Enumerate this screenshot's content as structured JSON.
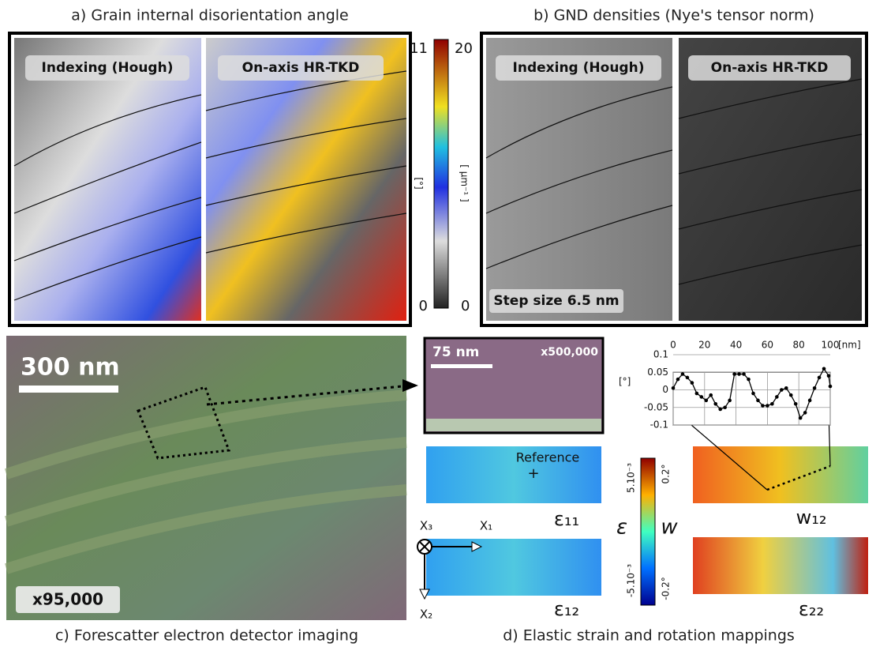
{
  "panel_a": {
    "caption": "a) Grain internal disorientation angle",
    "left_label": "Indexing (Hough)",
    "right_label": "On-axis HR-TKD",
    "colorbar": {
      "left_max": 11,
      "left_min": 0,
      "right_max": 20,
      "right_min": 0,
      "left_unit": "[°]",
      "right_unit": "[ µm⁻¹ ]"
    }
  },
  "panel_b": {
    "caption": "b) GND densities (Nye's tensor norm)",
    "left_label": "Indexing (Hough)",
    "right_label": "On-axis HR-TKD",
    "step_size": "Step size 6.5 nm"
  },
  "panel_c": {
    "caption": "c) Forescatter electron detector imaging",
    "scale_bar": "300 nm",
    "magnification": "x95,000"
  },
  "panel_d": {
    "caption": "d) Elastic strain and rotation mappings",
    "inset_scale_bar": "75 nm",
    "inset_magnification": "x500,000",
    "reference": "Reference",
    "maps": [
      "ε₁₁",
      "ε₁₂",
      "w₁₂",
      "ε₂₂"
    ],
    "axes": [
      "X₃",
      "X₁",
      "X₂"
    ],
    "colorbar": {
      "strain_max": "5.10⁻³",
      "strain_min": "-5.10⁻³",
      "strain_symbol": "ε",
      "rotation_symbol": "w",
      "rotation_max": "0.2°",
      "rotation_min": "-0.2°"
    },
    "profile": {
      "x_unit": "[nm]",
      "y_unit": "[°]",
      "xlim": [
        0,
        100
      ],
      "ylim": [
        -0.1,
        0.1
      ],
      "xticks": [
        0,
        20,
        40,
        60,
        80,
        100
      ],
      "yticks": [
        0.1,
        0.05,
        0,
        -0.05,
        -0.1
      ],
      "x": [
        0,
        3,
        6,
        9,
        12,
        15,
        18,
        21,
        24,
        27,
        30,
        33,
        36,
        39,
        42,
        45,
        48,
        51,
        54,
        57,
        60,
        63,
        66,
        69,
        72,
        75,
        78,
        81,
        84,
        87,
        90,
        93,
        96,
        99,
        100
      ],
      "values": [
        0.005,
        0.03,
        0.045,
        0.035,
        0.02,
        -0.01,
        -0.02,
        -0.03,
        -0.015,
        -0.04,
        -0.055,
        -0.05,
        -0.03,
        0.045,
        0.045,
        0.045,
        0.03,
        -0.01,
        -0.03,
        -0.045,
        -0.045,
        -0.04,
        -0.02,
        0,
        0.005,
        -0.015,
        -0.04,
        -0.08,
        -0.065,
        -0.03,
        0.005,
        0.035,
        0.06,
        0.04,
        0.01
      ]
    }
  }
}
